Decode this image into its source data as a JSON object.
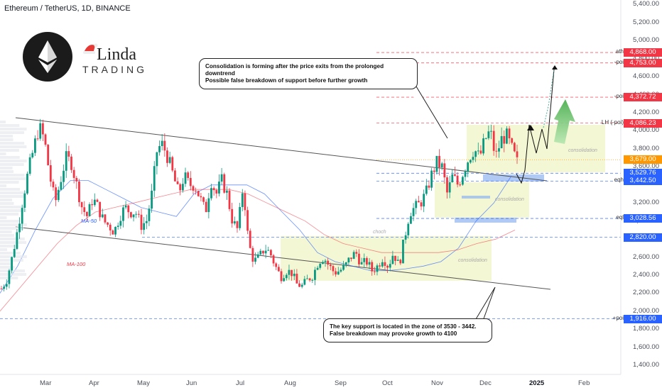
{
  "header": {
    "symbol_line": "Ethereum / TetherUS, 1D, BINANCE"
  },
  "brand": {
    "line1": "Linda",
    "line2": "TRADING"
  },
  "callouts": {
    "top": [
      "Consolidation is forming after the price exits from the prolonged downtrend",
      "Possible false breakdown of support before further growth"
    ],
    "bottom": [
      "The key support is located in the zone of 3530 - 3442.",
      "False breakdown may provoke growth to 4100"
    ]
  },
  "indicators": {
    "ma50": "MA-50",
    "ma100": "MA-100"
  },
  "zone_labels": {
    "choch": "choch",
    "consolidation": "consolidation"
  },
  "colors": {
    "bull": "#089981",
    "bear": "#f23645",
    "badge_red": "#f23645",
    "badge_blue": "#2962ff",
    "current_price": "#ff9800",
    "zone_fill": "#f1f5c8",
    "support_blue": "#8fb3f0"
  },
  "levels": [
    {
      "label": "ath",
      "price": 4868.0,
      "badge": "4,868.00",
      "color": "#f23645"
    },
    {
      "label": "-poi",
      "price": 4753.0,
      "badge": "4,753.00",
      "color": "#f23645"
    },
    {
      "label": "-poi",
      "price": 4372.72,
      "badge": "4,372.72",
      "color": "#f23645"
    },
    {
      "label": "LH (-poi)",
      "price": 4086.23,
      "badge": "4,086.23",
      "color": "#f23645"
    },
    {
      "label": "",
      "price": 3679.0,
      "badge": "3,679.00",
      "color": "#ff9800"
    },
    {
      "label": "",
      "price": 3529.76,
      "badge": "3,529.76",
      "color": "#2962ff"
    },
    {
      "label": "eqh",
      "price": 3442.5,
      "badge": "3,442.50",
      "color": "#2962ff"
    },
    {
      "label": "eql",
      "price": 3028.56,
      "badge": "3,028.56",
      "color": "#2962ff"
    },
    {
      "label": "",
      "price": 2820.0,
      "badge": "2,820.00",
      "color": "#2962ff"
    },
    {
      "label": "+poi",
      "price": 1916.0,
      "badge": "1,916.00",
      "color": "#2962ff"
    }
  ],
  "chart_data": {
    "type": "candlestick",
    "title": "Ethereum / TetherUS, 1D, BINANCE",
    "ylim": [
      1300,
      5450
    ],
    "y_ticks": [
      "5,400.00",
      "5,200.00",
      "5,000.00",
      "4,800.00",
      "4,600.00",
      "4,400.00",
      "4,200.00",
      "4,000.00",
      "3,800.00",
      "3,600.00",
      "3,200.00",
      "3,000.00",
      "2,800.00",
      "2,600.00",
      "2,400.00",
      "2,200.00",
      "2,000.00",
      "1,800.00",
      "1,600.00",
      "1,400.00"
    ],
    "x_ticks": [
      "Mar",
      "Apr",
      "May",
      "Jun",
      "Jul",
      "Aug",
      "Sep",
      "Oct",
      "Nov",
      "Dec",
      "2025",
      "Feb"
    ],
    "series": [
      {
        "name": "Ethereum / TetherUS",
        "price_path": [
          2250,
          2350,
          2600,
          2900,
          3250,
          3550,
          3800,
          4050,
          3900,
          3500,
          3200,
          3450,
          3700,
          3650,
          3400,
          3150,
          3050,
          3250,
          3150,
          3000,
          2950,
          2880,
          3050,
          3150,
          3100,
          3100,
          2950,
          3000,
          3300,
          3800,
          3850,
          3700,
          3500,
          3300,
          3500,
          3400,
          3400,
          3250,
          3100,
          3450,
          3300,
          3450,
          3300,
          3000,
          2900,
          3400,
          2750,
          2550,
          2600,
          2700,
          2650,
          2500,
          2380,
          2450,
          2430,
          2300,
          2280,
          2350,
          2400,
          2550,
          2600,
          2500,
          2430,
          2450,
          2500,
          2600,
          2650,
          2520,
          2550,
          2450,
          2500,
          2600,
          2500,
          2650,
          2500,
          2800,
          3100,
          3150,
          3200,
          3300,
          3500,
          3650,
          3600,
          3300,
          3500,
          3400,
          3550,
          3700,
          3800,
          3700,
          3900,
          4000,
          3700,
          3900,
          3950,
          3800,
          3650
        ]
      },
      {
        "name": "MA-50",
        "values": [
          2200,
          2500,
          2900,
          3250,
          3450,
          3450,
          3350,
          3250,
          3150,
          3100,
          3050,
          3300,
          3400,
          3400,
          3400,
          3300,
          3100,
          2900,
          2650,
          2550,
          2500,
          2450,
          2450,
          2470,
          2500,
          2550,
          2700,
          3000,
          3200,
          3500
        ]
      },
      {
        "name": "MA-100",
        "values": [
          2000,
          2250,
          2500,
          2750,
          2950,
          3100,
          3150,
          3200,
          3250,
          3300,
          3350,
          3350,
          3350,
          3300,
          3200,
          3100,
          3000,
          2850,
          2750,
          2700,
          2650,
          2650,
          2650,
          2650,
          2680,
          2750,
          2800,
          2900
        ]
      }
    ],
    "current_price": 3679.0,
    "projection": [
      3442.5,
      3530,
      4050,
      3800,
      4868
    ]
  }
}
